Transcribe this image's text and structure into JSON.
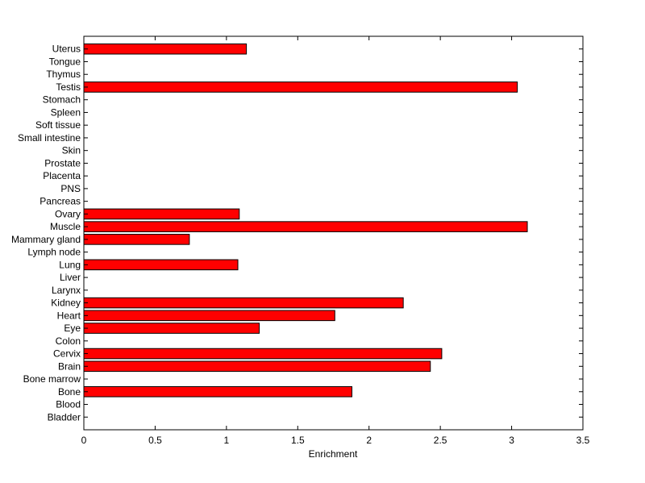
{
  "chart_data": {
    "type": "bar",
    "orientation": "horizontal",
    "categories": [
      "Bladder",
      "Blood",
      "Bone",
      "Bone marrow",
      "Brain",
      "Cervix",
      "Colon",
      "Eye",
      "Heart",
      "Kidney",
      "Larynx",
      "Liver",
      "Lung",
      "Lymph node",
      "Mammary gland",
      "Muscle",
      "Ovary",
      "Pancreas",
      "PNS",
      "Placenta",
      "Prostate",
      "Skin",
      "Small intestine",
      "Soft tissue",
      "Spleen",
      "Stomach",
      "Testis",
      "Thymus",
      "Tongue",
      "Uterus"
    ],
    "values": [
      0,
      0,
      1.88,
      0,
      2.43,
      2.51,
      0,
      1.23,
      1.76,
      2.24,
      0,
      0,
      1.08,
      0,
      0.74,
      3.11,
      1.09,
      0,
      0,
      0,
      0,
      0,
      0,
      0,
      0,
      0,
      3.04,
      0,
      0,
      1.14
    ],
    "title": "",
    "xlabel": "Enrichment",
    "ylabel": "",
    "xlim": [
      0,
      3.5
    ],
    "xticks": [
      "0",
      "0.5",
      "1",
      "1.5",
      "2",
      "2.5",
      "3",
      "3.5"
    ],
    "grid": false,
    "bar_color": "#ff0000",
    "bar_edge_color": "#000000"
  }
}
